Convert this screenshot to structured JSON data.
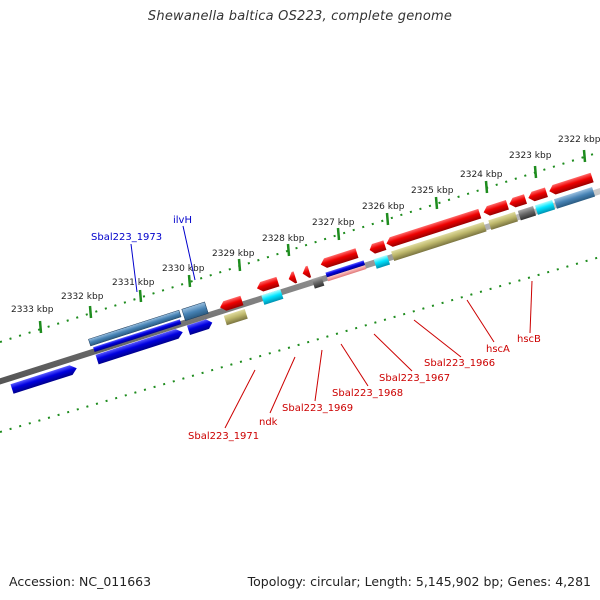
{
  "title": "Shewanella baltica OS223, complete genome",
  "footer": {
    "accession": "Accession: NC_011663",
    "summary": "Topology: circular; Length: 5,145,902 bp; Genes: 4,281"
  },
  "ticks": [
    "2322 kbp",
    "2323 kbp",
    "2324 kbp",
    "2325 kbp",
    "2326 kbp",
    "2327 kbp",
    "2328 kbp",
    "2329 kbp",
    "2330 kbp",
    "2331 kbp",
    "2332 kbp",
    "2333 kbp"
  ],
  "genes_top": [
    "Sbal223_1973",
    "ilvH"
  ],
  "genes_bottom": [
    "hscB",
    "hscA",
    "Sbal223_1966",
    "Sbal223_1967",
    "Sbal223_1968",
    "Sbal223_1969",
    "ndk",
    "Sbal223_1971"
  ],
  "colors": {
    "forward_strand": "#0000dd",
    "reverse_strand": "#dd0000",
    "rna": "#00e0ff",
    "misc": "#b0a860",
    "backbone": "#888888",
    "tick": "#1e8c1e"
  }
}
